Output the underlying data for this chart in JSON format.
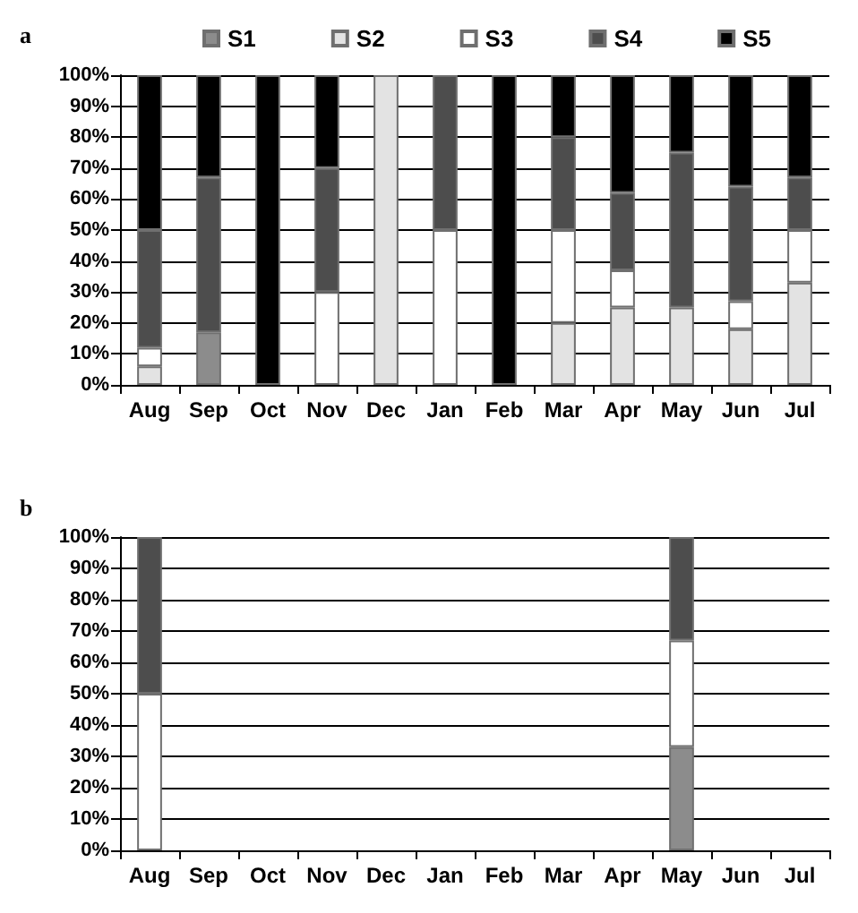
{
  "chart_data": [
    {
      "type": "bar",
      "title": "a",
      "stacked": true,
      "categories": [
        "Aug",
        "Sep",
        "Oct",
        "Nov",
        "Dec",
        "Jan",
        "Feb",
        "Mar",
        "Apr",
        "May",
        "Jun",
        "Jul"
      ],
      "series": [
        {
          "name": "S1",
          "color": "#8c8c8c",
          "values": [
            null,
            17,
            null,
            null,
            null,
            null,
            null,
            null,
            null,
            null,
            null,
            null
          ]
        },
        {
          "name": "S2",
          "color": "#e3e3e3",
          "values": [
            6,
            null,
            null,
            null,
            100,
            null,
            null,
            20,
            25,
            25,
            18,
            33
          ]
        },
        {
          "name": "S3",
          "color": "#ffffff",
          "values": [
            6,
            null,
            null,
            30,
            null,
            50,
            null,
            30,
            12,
            null,
            9,
            17
          ]
        },
        {
          "name": "S4",
          "color": "#4d4d4d",
          "values": [
            38,
            50,
            null,
            40,
            null,
            50,
            null,
            30,
            25,
            50,
            37,
            17
          ]
        },
        {
          "name": "S5",
          "color": "#000000",
          "values": [
            50,
            33,
            100,
            30,
            null,
            null,
            100,
            20,
            38,
            25,
            36,
            33
          ]
        }
      ],
      "ylim": [
        0,
        100
      ],
      "yticks": [
        {
          "value": 0,
          "label": "0%"
        },
        {
          "value": 10,
          "label": "10%"
        },
        {
          "value": 20,
          "label": "20%"
        },
        {
          "value": 30,
          "label": "30%"
        },
        {
          "value": 40,
          "label": "40%"
        },
        {
          "value": 50,
          "label": "50%"
        },
        {
          "value": 60,
          "label": "60%"
        },
        {
          "value": 70,
          "label": "70%"
        },
        {
          "value": 80,
          "label": "80%"
        },
        {
          "value": 90,
          "label": "90%"
        },
        {
          "value": 100,
          "label": "100%"
        }
      ],
      "grid": "y",
      "legend": "top"
    },
    {
      "type": "bar",
      "title": "b",
      "stacked": true,
      "categories": [
        "Aug",
        "Sep",
        "Oct",
        "Nov",
        "Dec",
        "Jan",
        "Feb",
        "Mar",
        "Apr",
        "May",
        "Jun",
        "Jul"
      ],
      "series": [
        {
          "color": "#8c8c8c",
          "values": [
            null,
            null,
            null,
            null,
            null,
            null,
            null,
            null,
            null,
            33,
            null,
            null
          ]
        },
        {
          "color": "#ffffff",
          "values": [
            50,
            null,
            null,
            null,
            null,
            null,
            null,
            null,
            null,
            34,
            null,
            null
          ]
        },
        {
          "color": "#4d4d4d",
          "values": [
            50,
            null,
            null,
            null,
            null,
            null,
            null,
            null,
            null,
            33,
            null,
            null
          ]
        }
      ],
      "ylim": [
        0,
        100
      ],
      "yticks": [
        {
          "value": 0,
          "label": "0%"
        },
        {
          "value": 10,
          "label": "10%"
        },
        {
          "value": 20,
          "label": "20%"
        },
        {
          "value": 30,
          "label": "30%"
        },
        {
          "value": 40,
          "label": "40%"
        },
        {
          "value": 50,
          "label": "50%"
        },
        {
          "value": 60,
          "label": "60%"
        },
        {
          "value": 70,
          "label": "70%"
        },
        {
          "value": 80,
          "label": "80%"
        },
        {
          "value": 90,
          "label": "90%"
        },
        {
          "value": 100,
          "label": "100%"
        }
      ],
      "grid": "y"
    }
  ]
}
